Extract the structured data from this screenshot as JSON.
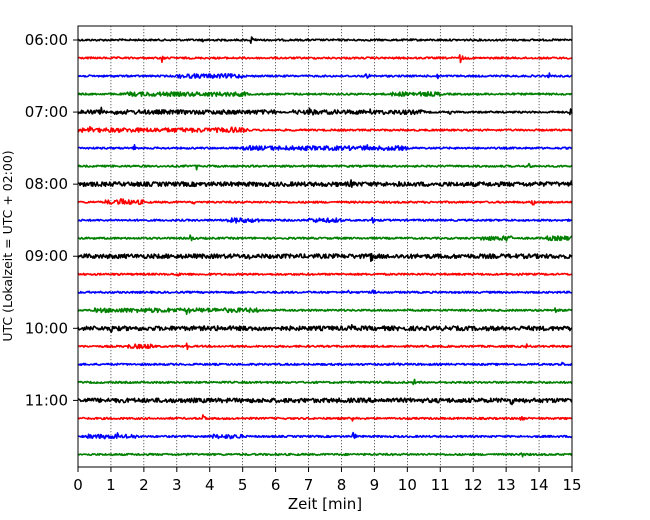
{
  "chart_data": {
    "type": "line",
    "title": "",
    "xlabel": "Zeit  [min]",
    "ylabel": "UTC (Lokalzeit = UTC + 02:00)",
    "xlim": [
      0,
      15
    ],
    "x_ticks": [
      "0",
      "1",
      "2",
      "3",
      "4",
      "5",
      "6",
      "7",
      "8",
      "9",
      "10",
      "11",
      "12",
      "13",
      "14",
      "15"
    ],
    "y_tick_labels": [
      "06:00",
      "07:00",
      "08:00",
      "09:00",
      "10:00",
      "11:00"
    ],
    "grid": "vertical dotted lines at each minute",
    "legend": "none",
    "trace_interval_minutes": 15,
    "trace_start": "06:00",
    "trace_end": "11:45",
    "color_cycle": [
      "#000000",
      "#ff0000",
      "#0000ff",
      "#008000"
    ],
    "series": [
      {
        "start": "06:00",
        "color": "#000000",
        "events": [
          {
            "x": 5.25,
            "a": 5
          },
          {
            "x": 3.8,
            "a": 2
          }
        ],
        "busy": []
      },
      {
        "start": "06:15",
        "color": "#ff0000",
        "events": [
          {
            "x": 2.55,
            "a": 5
          },
          {
            "x": 11.6,
            "a": 5
          }
        ],
        "busy": []
      },
      {
        "start": "06:30",
        "color": "#0000ff",
        "events": [
          {
            "x": 8.75,
            "a": 4
          },
          {
            "x": 10.9,
            "a": 4
          },
          {
            "x": 14.3,
            "a": 3
          }
        ],
        "busy": [
          {
            "from": 3.0,
            "to": 5.0
          }
        ]
      },
      {
        "start": "06:45",
        "color": "#008000",
        "events": [
          {
            "x": 10.4,
            "a": 3
          }
        ],
        "busy": [
          {
            "from": 1.5,
            "to": 5.2
          },
          {
            "from": 9.5,
            "to": 11.0
          }
        ]
      },
      {
        "start": "07:00",
        "color": "#000000",
        "events": [
          {
            "x": 0.7,
            "a": 5
          },
          {
            "x": 7.05,
            "a": 6
          },
          {
            "x": 8.8,
            "a": 4
          },
          {
            "x": 11.25,
            "a": 4
          },
          {
            "x": 14.95,
            "a": 6
          }
        ],
        "busy": [
          {
            "from": 0.0,
            "to": 6.0
          },
          {
            "from": 6.5,
            "to": 10.5
          }
        ]
      },
      {
        "start": "07:15",
        "color": "#ff0000",
        "events": [
          {
            "x": 0.3,
            "a": 5
          },
          {
            "x": 4.65,
            "a": 5
          }
        ],
        "busy": [
          {
            "from": 0.0,
            "to": 5.2
          }
        ]
      },
      {
        "start": "07:30",
        "color": "#0000ff",
        "events": [
          {
            "x": 1.7,
            "a": 4
          },
          {
            "x": 8.7,
            "a": 5
          },
          {
            "x": 9.45,
            "a": 3
          }
        ],
        "busy": [
          {
            "from": 5.0,
            "to": 10.0
          }
        ]
      },
      {
        "start": "07:45",
        "color": "#008000",
        "events": [
          {
            "x": 3.6,
            "a": 4
          },
          {
            "x": 13.7,
            "a": 4
          }
        ],
        "busy": []
      },
      {
        "start": "08:00",
        "color": "#000000",
        "events": [
          {
            "x": 8.3,
            "a": 4
          },
          {
            "x": 9.75,
            "a": 4
          },
          {
            "x": 14.95,
            "a": 3
          }
        ],
        "busy": [
          {
            "from": 0.0,
            "to": 15.0
          }
        ]
      },
      {
        "start": "08:15",
        "color": "#ff0000",
        "events": [
          {
            "x": 1.3,
            "a": 4
          },
          {
            "x": 3.5,
            "a": 3
          },
          {
            "x": 13.8,
            "a": 4
          }
        ],
        "busy": [
          {
            "from": 0.8,
            "to": 2.0
          }
        ]
      },
      {
        "start": "08:30",
        "color": "#0000ff",
        "events": [
          {
            "x": 8.95,
            "a": 4
          },
          {
            "x": 4.8,
            "a": 2
          }
        ],
        "busy": [
          {
            "from": 4.5,
            "to": 5.5
          },
          {
            "from": 7.0,
            "to": 8.0
          }
        ]
      },
      {
        "start": "08:45",
        "color": "#008000",
        "events": [
          {
            "x": 3.4,
            "a": 5
          },
          {
            "x": 13.0,
            "a": 3
          }
        ],
        "busy": [
          {
            "from": 12.2,
            "to": 13.2
          },
          {
            "from": 14.2,
            "to": 15.0
          }
        ]
      },
      {
        "start": "09:00",
        "color": "#000000",
        "events": [
          {
            "x": 8.9,
            "a": 5
          },
          {
            "x": 5.2,
            "a": 3
          }
        ],
        "busy": [
          {
            "from": 0.0,
            "to": 15.0
          }
        ]
      },
      {
        "start": "09:15",
        "color": "#ff0000",
        "events": [
          {
            "x": 3.0,
            "a": 3
          },
          {
            "x": 13.4,
            "a": 3
          }
        ],
        "busy": []
      },
      {
        "start": "09:30",
        "color": "#0000ff",
        "events": [
          {
            "x": 8.95,
            "a": 4
          },
          {
            "x": 8.2,
            "a": 2
          }
        ],
        "busy": []
      },
      {
        "start": "09:45",
        "color": "#008000",
        "events": [
          {
            "x": 3.3,
            "a": 4
          },
          {
            "x": 14.5,
            "a": 4
          }
        ],
        "busy": [
          {
            "from": 0.5,
            "to": 5.5
          }
        ]
      },
      {
        "start": "10:00",
        "color": "#000000",
        "events": [
          {
            "x": 1.0,
            "a": 4
          },
          {
            "x": 8.3,
            "a": 4
          },
          {
            "x": 4.2,
            "a": 3
          },
          {
            "x": 5.0,
            "a": 3
          }
        ],
        "busy": [
          {
            "from": 0.0,
            "to": 15.0
          }
        ]
      },
      {
        "start": "10:15",
        "color": "#ff0000",
        "events": [
          {
            "x": 3.3,
            "a": 4
          },
          {
            "x": 13.6,
            "a": 4
          }
        ],
        "busy": [
          {
            "from": 1.5,
            "to": 2.3
          }
        ]
      },
      {
        "start": "10:30",
        "color": "#0000ff",
        "events": [
          {
            "x": 9.6,
            "a": 3
          },
          {
            "x": 14.7,
            "a": 3
          }
        ],
        "busy": []
      },
      {
        "start": "10:45",
        "color": "#008000",
        "events": [
          {
            "x": 10.2,
            "a": 4
          },
          {
            "x": 9.15,
            "a": 2
          }
        ],
        "busy": []
      },
      {
        "start": "11:00",
        "color": "#000000",
        "events": [
          {
            "x": 6.5,
            "a": 5
          },
          {
            "x": 13.15,
            "a": 4
          },
          {
            "x": 1.0,
            "a": 2
          }
        ],
        "busy": [
          {
            "from": 0.0,
            "to": 15.0
          }
        ]
      },
      {
        "start": "11:15",
        "color": "#ff0000",
        "events": [
          {
            "x": 3.8,
            "a": 4
          },
          {
            "x": 8.35,
            "a": 4
          },
          {
            "x": 13.45,
            "a": 4
          }
        ],
        "busy": []
      },
      {
        "start": "11:30",
        "color": "#0000ff",
        "events": [
          {
            "x": 1.2,
            "a": 6
          },
          {
            "x": 8.35,
            "a": 5
          }
        ],
        "busy": [
          {
            "from": 0.3,
            "to": 1.8
          },
          {
            "from": 4.0,
            "to": 5.0
          }
        ]
      },
      {
        "start": "11:45",
        "color": "#008000",
        "events": [
          {
            "x": 13.45,
            "a": 5
          },
          {
            "x": 3.3,
            "a": 2
          }
        ],
        "busy": []
      }
    ]
  }
}
